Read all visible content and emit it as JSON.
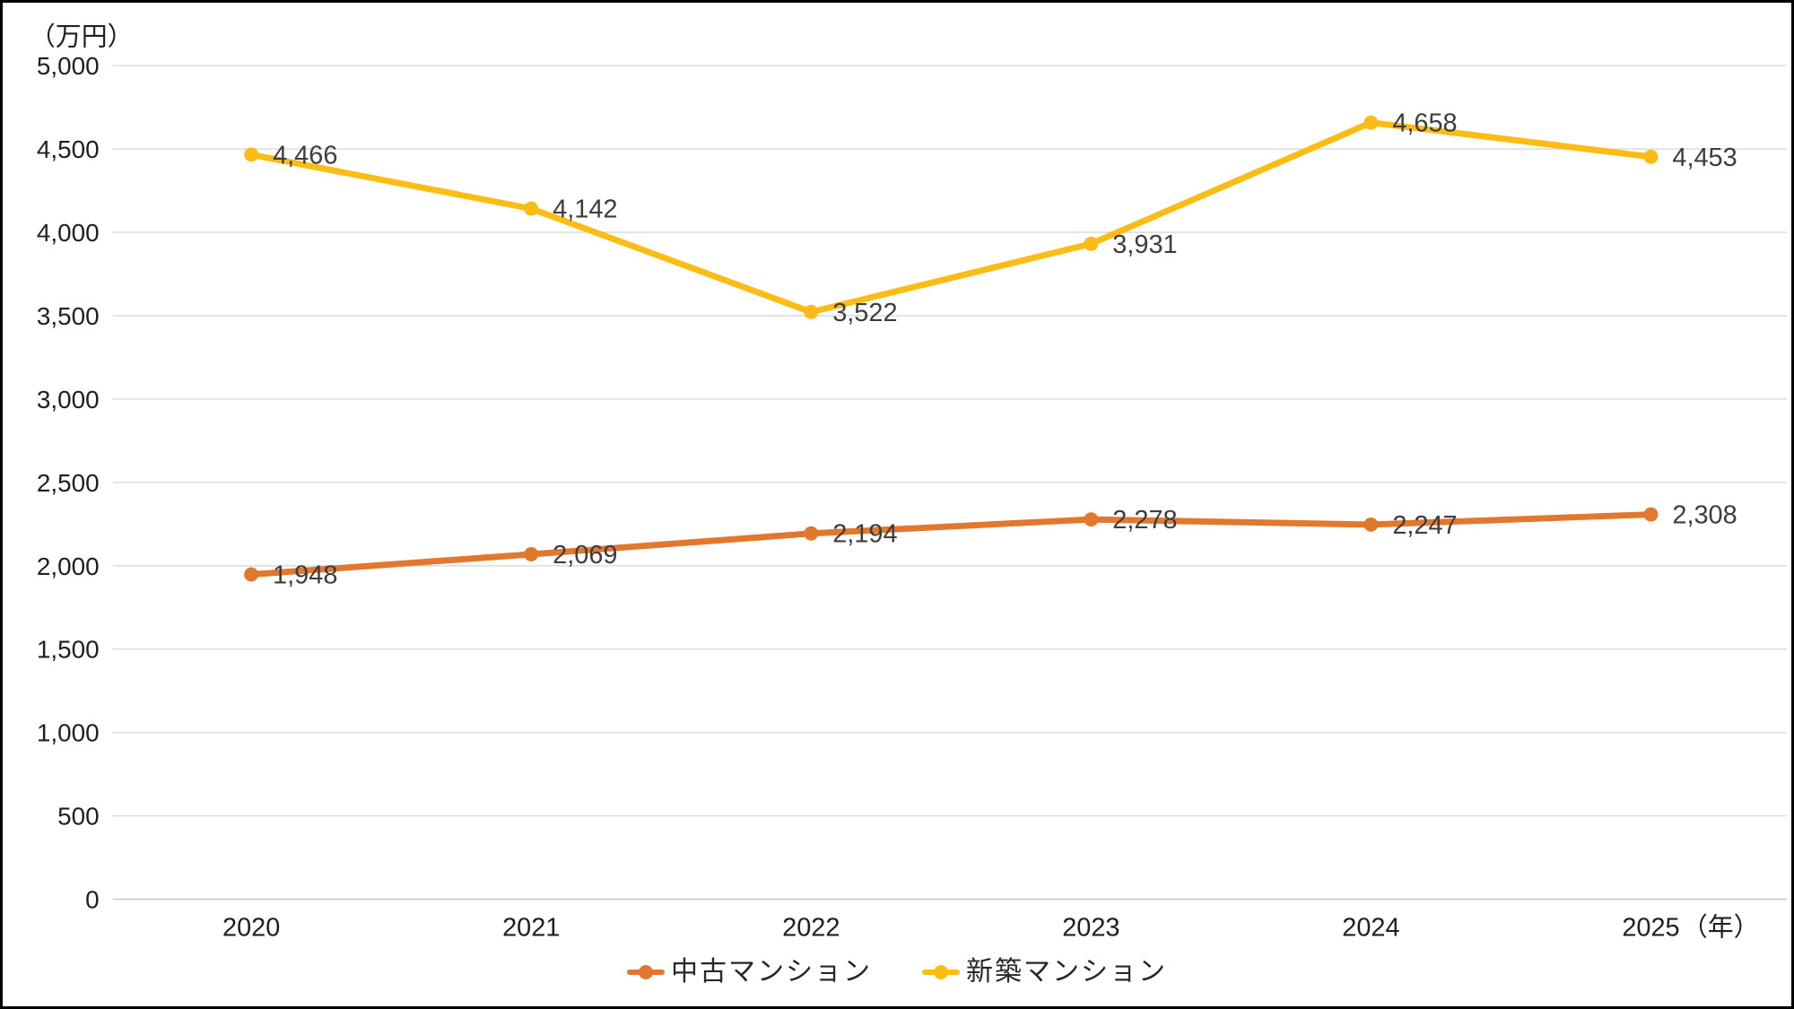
{
  "chart_data": {
    "type": "line",
    "title": "",
    "unit_label": "（万円）",
    "x_suffix_label": "（年）",
    "categories": [
      "2020",
      "2021",
      "2022",
      "2023",
      "2024",
      "2025"
    ],
    "series": [
      {
        "name": "中古マンション",
        "color": "#E2772E",
        "values": [
          1948,
          2069,
          2194,
          2278,
          2247,
          2308
        ],
        "value_labels": [
          "1,948",
          "2,069",
          "2,194",
          "2,278",
          "2,247",
          "2,308"
        ]
      },
      {
        "name": "新築マンション",
        "color": "#FBBC15",
        "values": [
          4466,
          4142,
          3522,
          3931,
          4658,
          4453
        ],
        "value_labels": [
          "4,466",
          "4,142",
          "3,522",
          "3,931",
          "4,658",
          "4,453"
        ]
      }
    ],
    "ylim": [
      0,
      5000
    ],
    "y_step": 500,
    "y_tick_labels": [
      "0",
      "500",
      "1,000",
      "1,500",
      "2,000",
      "2,500",
      "3,000",
      "3,500",
      "4,000",
      "4,500",
      "5,000"
    ],
    "grid": true,
    "legend_position": "bottom",
    "data_label_position": "right"
  },
  "style": {
    "tick_text_color": "#1f1f1f",
    "data_label_color": "#3d3d3d",
    "gridline_color": "#dcdcdc",
    "axis_line_color": "#c6c6c6",
    "background": "#ffffff",
    "frame_color": "#000000"
  }
}
